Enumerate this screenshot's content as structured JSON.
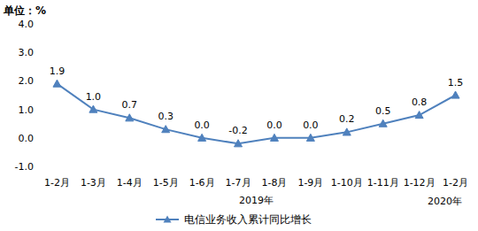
{
  "chart_data": {
    "type": "line",
    "y_label": "单位：%",
    "categories": [
      "1-2月",
      "1-3月",
      "1-4月",
      "1-5月",
      "1-6月",
      "1-7月",
      "1-8月",
      "1-9月",
      "1-10月",
      "1-11月",
      "1-12月",
      "1-2月"
    ],
    "series": [
      {
        "name": "电信业务收入累计同比增长",
        "color": "#4f81bd",
        "marker": "triangle",
        "line_style": "solid",
        "values": [
          1.9,
          1.0,
          0.7,
          0.3,
          0.0,
          -0.2,
          0.0,
          0.0,
          0.2,
          0.5,
          0.8,
          1.5
        ],
        "value_labels": [
          "1.9",
          "1.0",
          "0.7",
          "0.3",
          "0.0",
          "-0.2",
          "0.0",
          "0.0",
          "0.2",
          "0.5",
          "0.8",
          "1.5"
        ]
      }
    ],
    "annotations": [
      {
        "text": "2019年"
      },
      {
        "text": "2020年"
      }
    ],
    "ylim": [
      -1.0,
      4.0
    ],
    "yticks": [
      {
        "value": -1.0,
        "label": "-1.0"
      },
      {
        "value": 0.0,
        "label": "0.0"
      },
      {
        "value": 1.0,
        "label": "1.0"
      },
      {
        "value": 2.0,
        "label": "2.0"
      },
      {
        "value": 3.0,
        "label": "3.0"
      },
      {
        "value": 4.0,
        "label": "4.0"
      }
    ],
    "grid": false,
    "data_labels": true,
    "legend": "bottom"
  }
}
